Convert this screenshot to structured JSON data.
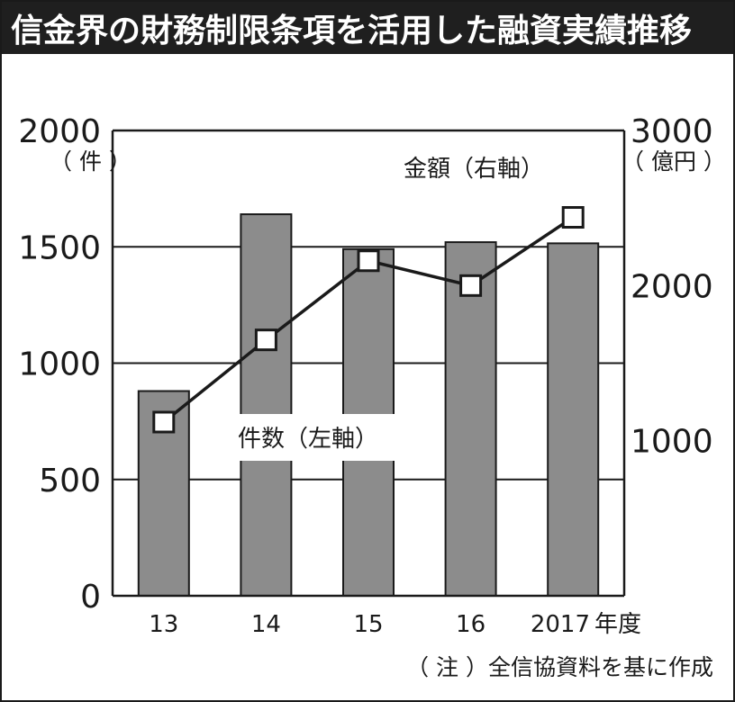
{
  "colors": {
    "title_bg": "#1f1f1f",
    "bar_fill": "#8c8c8c",
    "bar_stroke": "#1a1a1a",
    "line": "#1a1a1a",
    "marker_fill": "#ffffff"
  },
  "chart_data": {
    "type": "bar",
    "title": "信金界の財務制限条項を活用した融資実績推移",
    "categories": [
      "13",
      "14",
      "15",
      "16",
      "2017"
    ],
    "x_suffix": "年度",
    "series": [
      {
        "name": "件数（左軸）",
        "type": "bar",
        "axis": "left",
        "values": [
          880,
          1640,
          1490,
          1520,
          1515
        ]
      },
      {
        "name": "金額（右軸）",
        "type": "line",
        "axis": "right",
        "values": [
          1120,
          1650,
          2160,
          2000,
          2440
        ]
      }
    ],
    "left_axis": {
      "ticks": [
        "0",
        "500",
        "1000",
        "1500",
        "2000"
      ],
      "range": [
        0,
        2000
      ],
      "unit": "（ 件 ）"
    },
    "right_axis": {
      "ticks": [
        "1000",
        "2000",
        "3000"
      ],
      "range": [
        0,
        3000
      ],
      "unit": "（ 億円 ）"
    },
    "grid": true,
    "legend": "inline labels",
    "note": "（ 注 ）全信協資料を基に作成"
  }
}
